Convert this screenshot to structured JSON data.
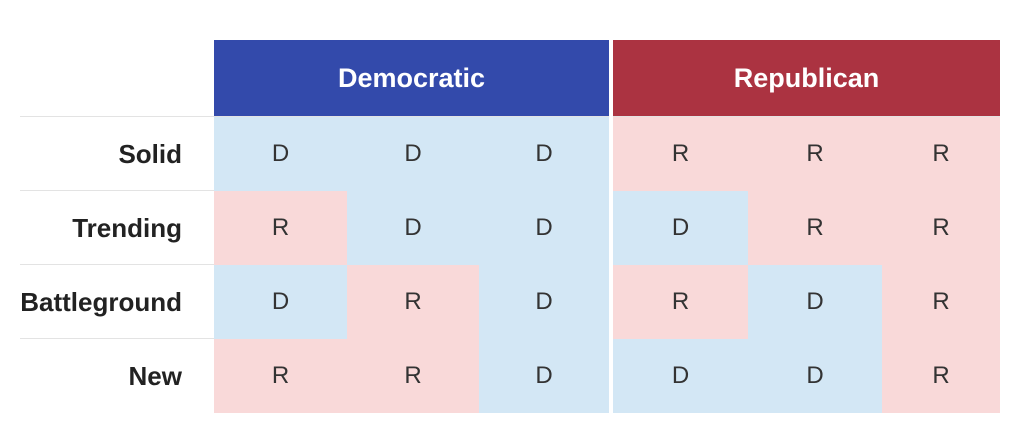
{
  "chart_data": {
    "type": "table",
    "columns": [
      {
        "label": "Democratic",
        "color": "#334aab",
        "span": 3
      },
      {
        "label": "Republican",
        "color": "#ab3341",
        "span": 3
      }
    ],
    "rows": [
      {
        "label": "Solid",
        "cells": [
          "D",
          "D",
          "D",
          "R",
          "R",
          "R"
        ]
      },
      {
        "label": "Trending",
        "cells": [
          "R",
          "D",
          "D",
          "D",
          "R",
          "R"
        ]
      },
      {
        "label": "Battleground",
        "cells": [
          "D",
          "R",
          "D",
          "R",
          "D",
          "R"
        ]
      },
      {
        "label": "New",
        "cells": [
          "R",
          "R",
          "D",
          "D",
          "D",
          "R"
        ]
      }
    ],
    "cell_colors": {
      "D": "#d3e7f5",
      "R": "#f9d9d9"
    }
  }
}
